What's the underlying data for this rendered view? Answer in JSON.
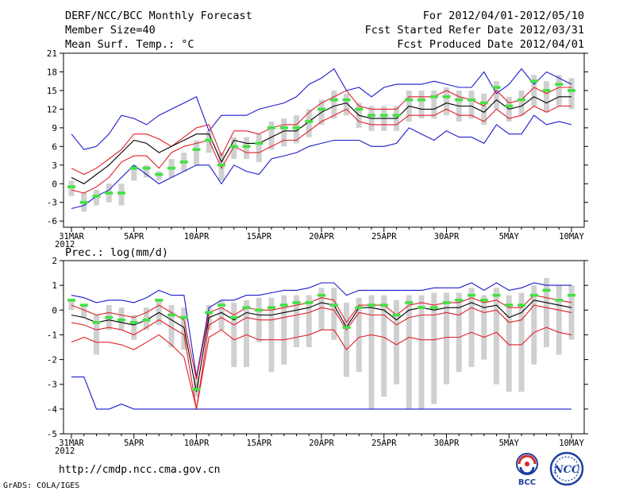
{
  "header": {
    "title": "DERF/NCC/BCC Monthly Forecast",
    "member_size": "Member Size=40",
    "variable": "Mean Surf. Temp.: °C",
    "period": "For 2012/04/01-2012/05/10",
    "refer_date": "Fcst Started Refer Date 2012/03/31",
    "produced_date": "Fcst Produced Date 2012/04/01"
  },
  "footer": {
    "url": "http://cmdp.ncc.cma.gov.cn",
    "credit": "GrADS: COLA/IGES",
    "logo_bcc": "BCC",
    "logo_ncc": "NCC"
  },
  "colors": {
    "box": "#d0d0d0",
    "median": "#44e044",
    "ensemble_mean": "#000000",
    "std_band": "#e0202a",
    "extremes": "#1a1acc"
  },
  "chart_data": [
    {
      "type": "box_time_series",
      "ylabel": "Mean Surf. Temp.: °C",
      "ylim": [
        -7,
        21
      ],
      "yticks": [
        -6,
        -3,
        0,
        3,
        6,
        9,
        12,
        15,
        18,
        21
      ],
      "x_tick_labels": [
        "31MAR",
        "5APR",
        "10APR",
        "15APR",
        "20APR",
        "25APR",
        "30APR",
        "5MAY",
        "10MAY"
      ],
      "x_year_label": "2012",
      "days": 41,
      "series": [
        {
          "name": "max",
          "values": [
            8,
            5.5,
            6,
            8,
            11,
            10.5,
            9.5,
            11,
            12,
            13,
            14,
            8.5,
            11,
            11,
            11,
            12,
            12.5,
            13,
            14,
            16,
            17,
            18.5,
            15,
            15.5,
            14,
            15.5,
            16,
            16,
            16,
            16.5,
            16,
            15.5,
            15.5,
            18,
            14.5,
            16,
            18.5,
            16,
            18,
            17,
            16
          ]
        },
        {
          "name": "mean_plus_std",
          "values": [
            2.5,
            1.5,
            2.5,
            4,
            5.5,
            8,
            8,
            7.2,
            6,
            7.5,
            9,
            9.5,
            4.5,
            8.5,
            8.5,
            8,
            9,
            9.5,
            9.5,
            11.5,
            13,
            14,
            15,
            12.5,
            12,
            12,
            12,
            14,
            14,
            14,
            15,
            14,
            13.5,
            12.5,
            15,
            13,
            13.5,
            15.5,
            14.5,
            15.5,
            15.5
          ]
        },
        {
          "name": "ensemble_mean",
          "values": [
            1,
            0,
            1.5,
            3,
            5,
            7,
            6.5,
            5,
            6,
            7,
            8,
            8,
            3.5,
            7,
            6.5,
            6.5,
            7.5,
            8.5,
            8.5,
            10,
            11.5,
            12.5,
            13,
            11,
            10.5,
            10.5,
            10.5,
            12.5,
            12,
            12,
            13,
            12.5,
            12.5,
            11.5,
            13.5,
            12,
            12.5,
            14,
            13,
            14,
            14
          ]
        },
        {
          "name": "mean_minus_std",
          "values": [
            -1,
            -1.5,
            -0.5,
            1,
            3.5,
            4.5,
            4.5,
            2.5,
            5,
            6,
            6.5,
            7,
            2.5,
            6,
            5,
            5,
            6,
            7,
            7,
            8.5,
            10,
            11,
            12,
            10,
            9.5,
            9.5,
            9.5,
            11,
            11,
            11,
            12,
            11,
            11,
            10,
            12,
            10.5,
            11,
            12.5,
            11.5,
            12.5,
            12.5
          ]
        },
        {
          "name": "min",
          "values": [
            -4,
            -3.5,
            -2,
            -1,
            1,
            3,
            1.5,
            0,
            1,
            2,
            3,
            3,
            0,
            3,
            2,
            1.5,
            4,
            4.5,
            5,
            6,
            6.5,
            7,
            7,
            7,
            6,
            6,
            6.5,
            9,
            8,
            7,
            8.5,
            7.5,
            7.5,
            6.5,
            9.5,
            8,
            8,
            11,
            9.5,
            10,
            9.5
          ]
        },
        {
          "name": "median",
          "values": [
            -0.5,
            -3,
            -2,
            -1.5,
            -1.5,
            2.5,
            2.5,
            1.5,
            2.5,
            3.5,
            5.5,
            7,
            3,
            6,
            6,
            6.5,
            9,
            9,
            9,
            10,
            12,
            13.5,
            13.5,
            12,
            11,
            11,
            11,
            13.5,
            13.5,
            14,
            14,
            13.5,
            13.5,
            13,
            15.5,
            12.5,
            13.5,
            16.5,
            15,
            16,
            15
          ]
        },
        {
          "name": "box_low",
          "values": [
            -2,
            -4.5,
            -3.5,
            -3,
            -3.5,
            0.5,
            1,
            0.5,
            1,
            2,
            3,
            5,
            0.5,
            4,
            4,
            3.5,
            5.5,
            6,
            6.5,
            7.5,
            9.5,
            10.5,
            11,
            9,
            8.5,
            8.5,
            8.5,
            10,
            10.5,
            10.5,
            11,
            10,
            10.5,
            9.5,
            12,
            10,
            11,
            12.5,
            11.5,
            12.5,
            12
          ]
        },
        {
          "name": "box_high",
          "values": [
            0.5,
            -1.5,
            -1,
            0,
            0,
            3,
            3,
            2,
            4,
            5,
            7,
            8.5,
            5,
            7.5,
            7.5,
            8,
            10,
            10.5,
            11,
            12,
            13.5,
            15,
            14.5,
            13,
            12.5,
            12.5,
            12.5,
            15,
            15,
            15,
            15.5,
            15,
            15,
            14.5,
            16.5,
            14,
            15,
            17.5,
            16.5,
            17.5,
            17
          ]
        }
      ]
    },
    {
      "type": "box_time_series",
      "ylabel": "Prec.: log(mm/d)",
      "ylim": [
        -5,
        2
      ],
      "yticks": [
        -5,
        -4,
        -3,
        -2,
        -1,
        0,
        1,
        2
      ],
      "x_tick_labels": [
        "31MAR",
        "5APR",
        "10APR",
        "15APR",
        "20APR",
        "25APR",
        "30APR",
        "5MAY",
        "10MAY"
      ],
      "x_year_label": "2012",
      "days": 41,
      "series": [
        {
          "name": "max",
          "values": [
            0.6,
            0.5,
            0.3,
            0.4,
            0.4,
            0.3,
            0.5,
            0.8,
            0.6,
            0.6,
            -2.7,
            0.1,
            0.4,
            0.4,
            0.6,
            0.6,
            0.7,
            0.8,
            0.8,
            0.9,
            1.1,
            1.1,
            0.6,
            0.8,
            0.8,
            0.8,
            0.8,
            0.8,
            0.8,
            0.9,
            0.9,
            0.9,
            1.1,
            0.8,
            1.1,
            0.8,
            0.9,
            1.1,
            1,
            1,
            1
          ]
        },
        {
          "name": "mean_plus_std",
          "values": [
            0.2,
            0,
            -0.2,
            -0.1,
            -0.2,
            -0.3,
            -0.1,
            0.2,
            -0.1,
            -0.4,
            -2.8,
            -0.1,
            0.1,
            -0.2,
            0.1,
            0,
            0,
            0.1,
            0.2,
            0.3,
            0.5,
            0.4,
            -0.5,
            0.2,
            0.2,
            0.2,
            -0.2,
            0.2,
            0.3,
            0.2,
            0.3,
            0.3,
            0.5,
            0.3,
            0.4,
            0.1,
            0.1,
            0.6,
            0.5,
            0.4,
            0.3
          ]
        },
        {
          "name": "ensemble_mean",
          "values": [
            -0.2,
            -0.3,
            -0.5,
            -0.4,
            -0.5,
            -0.6,
            -0.4,
            -0.1,
            -0.4,
            -0.7,
            -3.3,
            -0.3,
            -0.1,
            -0.4,
            -0.1,
            -0.2,
            -0.2,
            -0.1,
            0,
            0.1,
            0.3,
            0.2,
            -0.7,
            0.1,
            0.1,
            0,
            -0.4,
            0,
            0.1,
            0,
            0.1,
            0.1,
            0.3,
            0.1,
            0.2,
            -0.3,
            -0.1,
            0.4,
            0.3,
            0.2,
            0.1
          ]
        },
        {
          "name": "mean_minus_std",
          "values": [
            -0.5,
            -0.6,
            -0.8,
            -0.7,
            -0.8,
            -1,
            -0.7,
            -0.4,
            -0.7,
            -1,
            -4,
            -0.6,
            -0.3,
            -0.6,
            -0.3,
            -0.4,
            -0.4,
            -0.3,
            -0.2,
            -0.1,
            0.1,
            0,
            -0.8,
            -0.1,
            -0.2,
            -0.2,
            -0.6,
            -0.3,
            -0.2,
            -0.2,
            -0.1,
            -0.2,
            0.1,
            -0.1,
            0,
            -0.5,
            -0.4,
            0.2,
            0.1,
            0,
            -0.1
          ]
        },
        {
          "name": "min",
          "values": [
            -2.7,
            -2.7,
            -4,
            -4,
            -3.8,
            -4,
            -4,
            -4,
            -4,
            -4,
            -4,
            -4,
            -4,
            -4,
            -4,
            -4,
            -4,
            -4,
            -4,
            -4,
            -4,
            -4,
            -4,
            -4,
            -4,
            -4,
            -4,
            -4,
            -4,
            -4,
            -4,
            -4,
            -4,
            -4,
            -4,
            -4,
            -4,
            -4,
            -4,
            -4,
            -4
          ]
        },
        {
          "name": "lower_curve",
          "values": [
            -1.3,
            -1.1,
            -1.3,
            -1.3,
            -1.4,
            -1.6,
            -1.3,
            -1,
            -1.4,
            -1.9,
            -4,
            -1.1,
            -0.8,
            -1.2,
            -1,
            -1.2,
            -1.2,
            -1.2,
            -1.1,
            -1,
            -0.8,
            -0.8,
            -1.6,
            -1.1,
            -1,
            -1.1,
            -1.4,
            -1.1,
            -1.2,
            -1.2,
            -1.1,
            -1.1,
            -0.9,
            -1.1,
            -0.9,
            -1.4,
            -1.4,
            -0.9,
            -0.7,
            -0.9,
            -1
          ]
        },
        {
          "name": "median",
          "values": [
            0.4,
            0.2,
            -0.5,
            -0.3,
            -0.4,
            -0.5,
            -0.4,
            0.4,
            -0.2,
            -0.3,
            -3.2,
            -0.1,
            0.2,
            -0.3,
            0.1,
            0,
            0.1,
            0.2,
            0.3,
            0.3,
            0.6,
            0.2,
            -0.7,
            0.1,
            0.2,
            0.2,
            -0.2,
            0.3,
            0.1,
            0.1,
            0.3,
            0.4,
            0.6,
            0.4,
            0.6,
            0.2,
            0.2,
            0.6,
            0.8,
            0.4,
            0.6
          ]
        },
        {
          "name": "box_low",
          "values": [
            0,
            -0.3,
            -1.8,
            -0.8,
            -0.8,
            -1.2,
            -0.8,
            -0.6,
            -1.5,
            -1.6,
            -3.5,
            -0.8,
            -0.8,
            -2.3,
            -2.3,
            -1.3,
            -2.5,
            -2.2,
            -1.5,
            -1.5,
            -0.8,
            -1.2,
            -2.7,
            -2.5,
            -4,
            -3.5,
            -3,
            -4,
            -4,
            -3.8,
            -3,
            -2.5,
            -2.3,
            -2,
            -3,
            -3.3,
            -3.3,
            -2.2,
            -1.5,
            -1.8,
            -1.2
          ]
        },
        {
          "name": "box_high",
          "values": [
            0.4,
            0.2,
            -0.2,
            0.2,
            0.1,
            -0.2,
            0.1,
            0.4,
            0.2,
            0.1,
            -2.7,
            0.2,
            0.4,
            0.3,
            0.4,
            0.5,
            0.5,
            0.6,
            0.6,
            0.6,
            0.9,
            0.9,
            0.3,
            0.5,
            0.6,
            0.6,
            0.4,
            0.6,
            0.6,
            0.7,
            0.7,
            0.7,
            0.9,
            0.6,
            0.9,
            0.6,
            0.7,
            1,
            1.3,
            1,
            1
          ]
        }
      ]
    }
  ]
}
